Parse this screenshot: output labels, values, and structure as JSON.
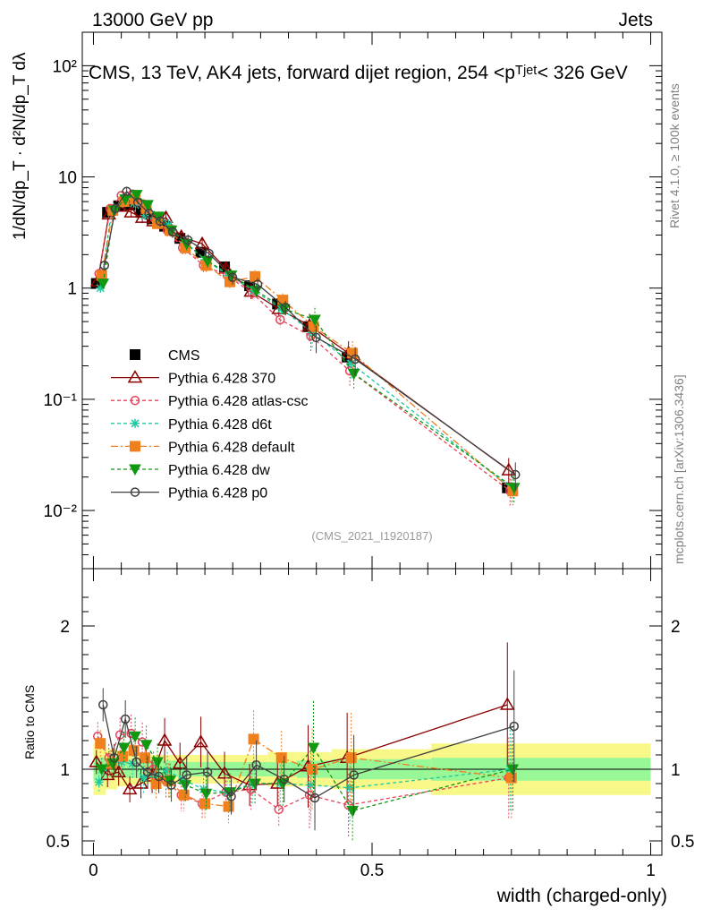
{
  "header": {
    "left": "13000 GeV pp",
    "right": "Jets"
  },
  "side_texts": {
    "rivet": "Rivet 4.1.0, ≥ 100k events",
    "mcplots": "mcplots.cern.ch [arXiv:1306.3436]"
  },
  "analysis_id": "(CMS_2021_I1920187)",
  "colors": {
    "CMS": "#000000",
    "370": "#8b0000",
    "atlas": "#e8405a",
    "d6t": "#1ec8a0",
    "default": "#f07f1e",
    "dw": "#109810",
    "p0": "#404040",
    "band_green": "#98f898",
    "band_yellow": "#f8f888"
  },
  "chart_data": [
    {
      "type": "line",
      "title": "CMS, 13 TeV, AK4 jets, forward dijet region, 254 <p_T^{jet}< 326 GeV",
      "ylabel": "1/dN/dp_T · d²N/dp_T dλ",
      "yscale": "log",
      "ylim": [
        0.003,
        200
      ],
      "xlim": [
        -0.02,
        1.02
      ],
      "y_tick_labels": [
        "10⁻²",
        "10⁻¹",
        "1",
        "10",
        "10²"
      ],
      "x": [
        0.0125,
        0.0325,
        0.0525,
        0.0725,
        0.0925,
        0.1125,
        0.135,
        0.1625,
        0.2,
        0.2425,
        0.2875,
        0.3375,
        0.3925,
        0.4625,
        0.75
      ],
      "series": [
        {
          "name": "CMS",
          "values": [
            1.1,
            4.8,
            5.5,
            5.6,
            4.8,
            4.2,
            3.6,
            2.8,
            2.1,
            1.55,
            1.05,
            0.72,
            0.45,
            0.24,
            0.016
          ]
        },
        {
          "name": "Pythia 6.428 370",
          "values": [
            1.15,
            4.6,
            5.4,
            4.8,
            4.3,
            4.0,
            4.3,
            2.9,
            2.5,
            1.5,
            0.93,
            0.65,
            0.46,
            0.26,
            0.023
          ]
        },
        {
          "name": "Pythia 6.428 atlas-csc",
          "values": [
            1.35,
            5.2,
            6.8,
            7.0,
            5.7,
            4.2,
            3.3,
            2.3,
            1.6,
            1.3,
            0.9,
            0.52,
            0.37,
            0.18,
            0.015
          ]
        },
        {
          "name": "Pythia 6.428 d6t",
          "values": [
            1.0,
            5.0,
            5.8,
            5.8,
            4.5,
            4.0,
            3.7,
            2.6,
            1.8,
            1.3,
            0.95,
            0.65,
            0.4,
            0.21,
            0.016
          ]
        },
        {
          "name": "Pythia 6.428 default",
          "values": [
            1.3,
            5.0,
            6.0,
            6.3,
            5.2,
            3.8,
            3.3,
            2.3,
            1.6,
            1.14,
            1.27,
            0.78,
            0.45,
            0.26,
            0.015
          ]
        },
        {
          "name": "Pythia 6.428 dw",
          "values": [
            1.1,
            5.0,
            6.3,
            6.9,
            5.6,
            4.4,
            3.3,
            2.5,
            1.75,
            1.3,
            0.95,
            0.65,
            0.52,
            0.17,
            0.016
          ]
        },
        {
          "name": "Pythia 6.428 p0",
          "values": [
            1.6,
            5.2,
            7.4,
            5.9,
            4.7,
            4.0,
            3.2,
            2.7,
            2.05,
            1.25,
            1.08,
            0.67,
            0.36,
            0.23,
            0.021
          ]
        }
      ],
      "legend": [
        "CMS",
        "Pythia 6.428 370",
        "Pythia 6.428 atlas-csc",
        "Pythia 6.428 d6t",
        "Pythia 6.428 default",
        "Pythia 6.428 dw",
        "Pythia 6.428 p0"
      ]
    },
    {
      "type": "line",
      "ylabel": "Ratio to CMS",
      "xlabel": "width (charged-only)",
      "ylim": [
        0.4,
        2.4
      ],
      "x_tick_labels": [
        "0",
        "0.5",
        "1"
      ],
      "y_tick_labels": [
        "0.5",
        "1",
        "2"
      ],
      "series": [
        {
          "name": "Pythia 6.428 370",
          "values": [
            1.05,
            0.96,
            0.98,
            0.86,
            0.9,
            0.95,
            1.2,
            1.04,
            1.19,
            0.97,
            0.89,
            0.9,
            1.02,
            1.08,
            1.45
          ]
        },
        {
          "name": "Pythia 6.428 atlas-csc",
          "values": [
            1.23,
            1.08,
            1.24,
            1.25,
            1.19,
            1.0,
            0.92,
            0.82,
            0.76,
            0.84,
            0.86,
            0.72,
            0.82,
            0.75,
            0.94
          ]
        },
        {
          "name": "Pythia 6.428 d6t",
          "values": [
            0.91,
            1.04,
            1.05,
            1.04,
            0.94,
            0.95,
            0.99,
            0.93,
            0.86,
            0.84,
            0.9,
            0.9,
            0.89,
            0.87,
            1.0
          ]
        },
        {
          "name": "Pythia 6.428 default",
          "values": [
            1.18,
            1.04,
            1.09,
            1.13,
            1.08,
            0.9,
            0.92,
            0.82,
            0.76,
            0.74,
            1.21,
            1.08,
            1.0,
            1.08,
            0.94
          ]
        },
        {
          "name": "Pythia 6.428 dw",
          "values": [
            1.0,
            1.04,
            1.15,
            1.23,
            1.17,
            1.05,
            0.92,
            0.89,
            0.83,
            0.84,
            0.9,
            0.9,
            1.15,
            0.71,
            1.0
          ]
        },
        {
          "name": "Pythia 6.428 p0",
          "values": [
            1.45,
            1.08,
            1.35,
            1.05,
            0.98,
            0.95,
            0.89,
            0.96,
            0.98,
            0.81,
            1.03,
            0.93,
            0.8,
            0.96,
            1.3
          ]
        }
      ],
      "band_inner": [
        0.08,
        0.06,
        0.06,
        0.06,
        0.06,
        0.06,
        0.06,
        0.05,
        0.05,
        0.05,
        0.05,
        0.05,
        0.06,
        0.07,
        0.08
      ],
      "band_outer": [
        0.18,
        0.14,
        0.12,
        0.11,
        0.1,
        0.1,
        0.1,
        0.1,
        0.1,
        0.1,
        0.1,
        0.12,
        0.12,
        0.14,
        0.18
      ]
    }
  ]
}
